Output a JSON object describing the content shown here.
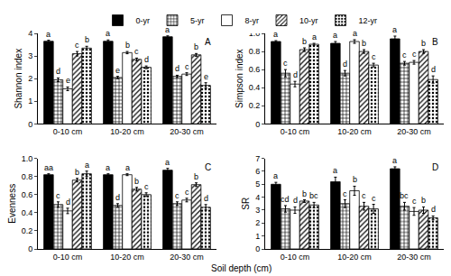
{
  "x_label": "Soil depth (cm)",
  "chart_data": [
    {
      "type": "bar",
      "y_label": "Shannon index",
      "panel": "A",
      "legend": "top",
      "categories": [
        "0-10 cm",
        "10-20 cm",
        "20-30 cm"
      ],
      "ylim": [
        0,
        4
      ],
      "yticks": [
        0,
        1,
        2,
        3,
        4
      ],
      "series": [
        {
          "name": "0-yr",
          "color": "#000000",
          "values": [
            3.65,
            3.65,
            3.85
          ],
          "errors": [
            0.05,
            0.06,
            0.04
          ],
          "letters": [
            "a",
            "a",
            "a"
          ]
        },
        {
          "name": "5-yr",
          "color": "#ffffff",
          "values": [
            1.95,
            2.05,
            2.1
          ],
          "errors": [
            0.08,
            0.05,
            0.05
          ],
          "letters": [
            "d",
            "e",
            "d"
          ]
        },
        {
          "name": "8-yr",
          "color": "#ffffff",
          "values": [
            1.55,
            3.15,
            2.2
          ],
          "errors": [
            0.08,
            0.05,
            0.06
          ],
          "letters": [
            "e",
            "b",
            "c"
          ]
        },
        {
          "name": "10-yr",
          "color": "#ffffff",
          "values": [
            3.1,
            2.85,
            3.05
          ],
          "errors": [
            0.1,
            0.06,
            0.06
          ],
          "letters": [
            "c",
            "c",
            "b"
          ]
        },
        {
          "name": "12-yr",
          "color": "#ffffff",
          "values": [
            3.35,
            2.5,
            1.7
          ],
          "errors": [
            0.08,
            0.06,
            0.12
          ],
          "letters": [
            "b",
            "d",
            "e"
          ]
        }
      ]
    },
    {
      "type": "bar",
      "y_label": "Simpson index",
      "panel": "B",
      "categories": [
        "0-10 cm",
        "10-20 cm",
        "20-30 cm"
      ],
      "ylim": [
        0,
        1
      ],
      "yticks": [
        0,
        0.2,
        0.4,
        0.6,
        0.8,
        {
          "value": 1,
          "label": "1.0"
        }
      ],
      "series": [
        {
          "name": "0-yr",
          "color": "#000000",
          "values": [
            0.91,
            0.89,
            0.94
          ],
          "errors": [
            0.01,
            0.02,
            0.03
          ],
          "letters": [
            "a",
            "a",
            "a"
          ]
        },
        {
          "name": "5-yr",
          "color": "#ffffff",
          "values": [
            0.56,
            0.56,
            0.67
          ],
          "errors": [
            0.04,
            0.03,
            0.02
          ],
          "letters": [
            "c",
            "d",
            "c"
          ]
        },
        {
          "name": "8-yr",
          "color": "#ffffff",
          "values": [
            0.44,
            0.91,
            0.68
          ],
          "errors": [
            0.03,
            0.02,
            0.02
          ],
          "letters": [
            "d",
            "a",
            "c"
          ]
        },
        {
          "name": "10-yr",
          "color": "#ffffff",
          "values": [
            0.82,
            0.8,
            0.8
          ],
          "errors": [
            0.02,
            0.02,
            0.02
          ],
          "letters": [
            "b",
            "b",
            "b"
          ]
        },
        {
          "name": "12-yr",
          "color": "#ffffff",
          "values": [
            0.88,
            0.65,
            0.49
          ],
          "errors": [
            0.01,
            0.02,
            0.04
          ],
          "letters": [
            "a",
            "c",
            "d"
          ]
        }
      ]
    },
    {
      "type": "bar",
      "y_label": "Evenness",
      "panel": "C",
      "categories": [
        "0-10 cm",
        "10-20 cm",
        "20-30 cm"
      ],
      "ylim": [
        0,
        1
      ],
      "yticks": [
        0,
        0.2,
        0.4,
        0.6,
        0.8,
        {
          "value": 1,
          "label": "1.0"
        }
      ],
      "series": [
        {
          "name": "0-yr",
          "color": "#000000",
          "values": [
            0.82,
            0.82,
            0.87
          ],
          "errors": [
            0.01,
            0.01,
            0.02
          ],
          "letters": [
            "aa",
            "a",
            "a"
          ]
        },
        {
          "name": "5-yr",
          "color": "#ffffff",
          "values": [
            0.49,
            0.48,
            0.5
          ],
          "errors": [
            0.03,
            0.02,
            0.02
          ],
          "letters": [
            "c",
            "d",
            "c"
          ]
        },
        {
          "name": "8-yr",
          "color": "#ffffff",
          "values": [
            0.42,
            0.82,
            0.54
          ],
          "errors": [
            0.03,
            0.01,
            0.02
          ],
          "letters": [
            "d",
            "a",
            "c"
          ]
        },
        {
          "name": "10-yr",
          "color": "#ffffff",
          "values": [
            0.76,
            0.66,
            0.71
          ],
          "errors": [
            0.02,
            0.02,
            0.02
          ],
          "letters": [
            "b",
            "b",
            "b"
          ]
        },
        {
          "name": "12-yr",
          "color": "#ffffff",
          "values": [
            0.83,
            0.6,
            0.46
          ],
          "errors": [
            0.03,
            0.02,
            0.03
          ],
          "letters": [
            "a",
            "c",
            "d"
          ]
        }
      ]
    },
    {
      "type": "bar",
      "y_label": "SR",
      "panel": "D",
      "categories": [
        "0-10 cm",
        "10-20 cm",
        "20-30 cm"
      ],
      "ylim": [
        0,
        7
      ],
      "yticks": [
        0,
        1,
        2,
        3,
        4,
        5,
        6,
        7
      ],
      "series": [
        {
          "name": "0-yr",
          "color": "#000000",
          "values": [
            5.0,
            5.2,
            6.2
          ],
          "errors": [
            0.15,
            0.35,
            0.15
          ],
          "letters": [
            "a",
            "a",
            "a"
          ]
        },
        {
          "name": "5-yr",
          "color": "#ffffff",
          "values": [
            3.1,
            3.5,
            3.3
          ],
          "errors": [
            0.25,
            0.3,
            0.3
          ],
          "letters": [
            "cd",
            "c",
            "bc"
          ]
        },
        {
          "name": "8-yr",
          "color": "#ffffff",
          "values": [
            3.0,
            4.5,
            2.9
          ],
          "errors": [
            0.25,
            0.35,
            0.3
          ],
          "letters": [
            "d",
            "b",
            "c"
          ]
        },
        {
          "name": "10-yr",
          "color": "#ffffff",
          "values": [
            3.7,
            3.3,
            3.0
          ],
          "errors": [
            0.1,
            0.3,
            0.25
          ],
          "letters": [
            "b",
            "c",
            "b"
          ]
        },
        {
          "name": "12-yr",
          "color": "#ffffff",
          "values": [
            3.4,
            3.1,
            2.4
          ],
          "errors": [
            0.2,
            0.35,
            0.15
          ],
          "letters": [
            "bc",
            "c",
            "d"
          ]
        }
      ]
    }
  ]
}
